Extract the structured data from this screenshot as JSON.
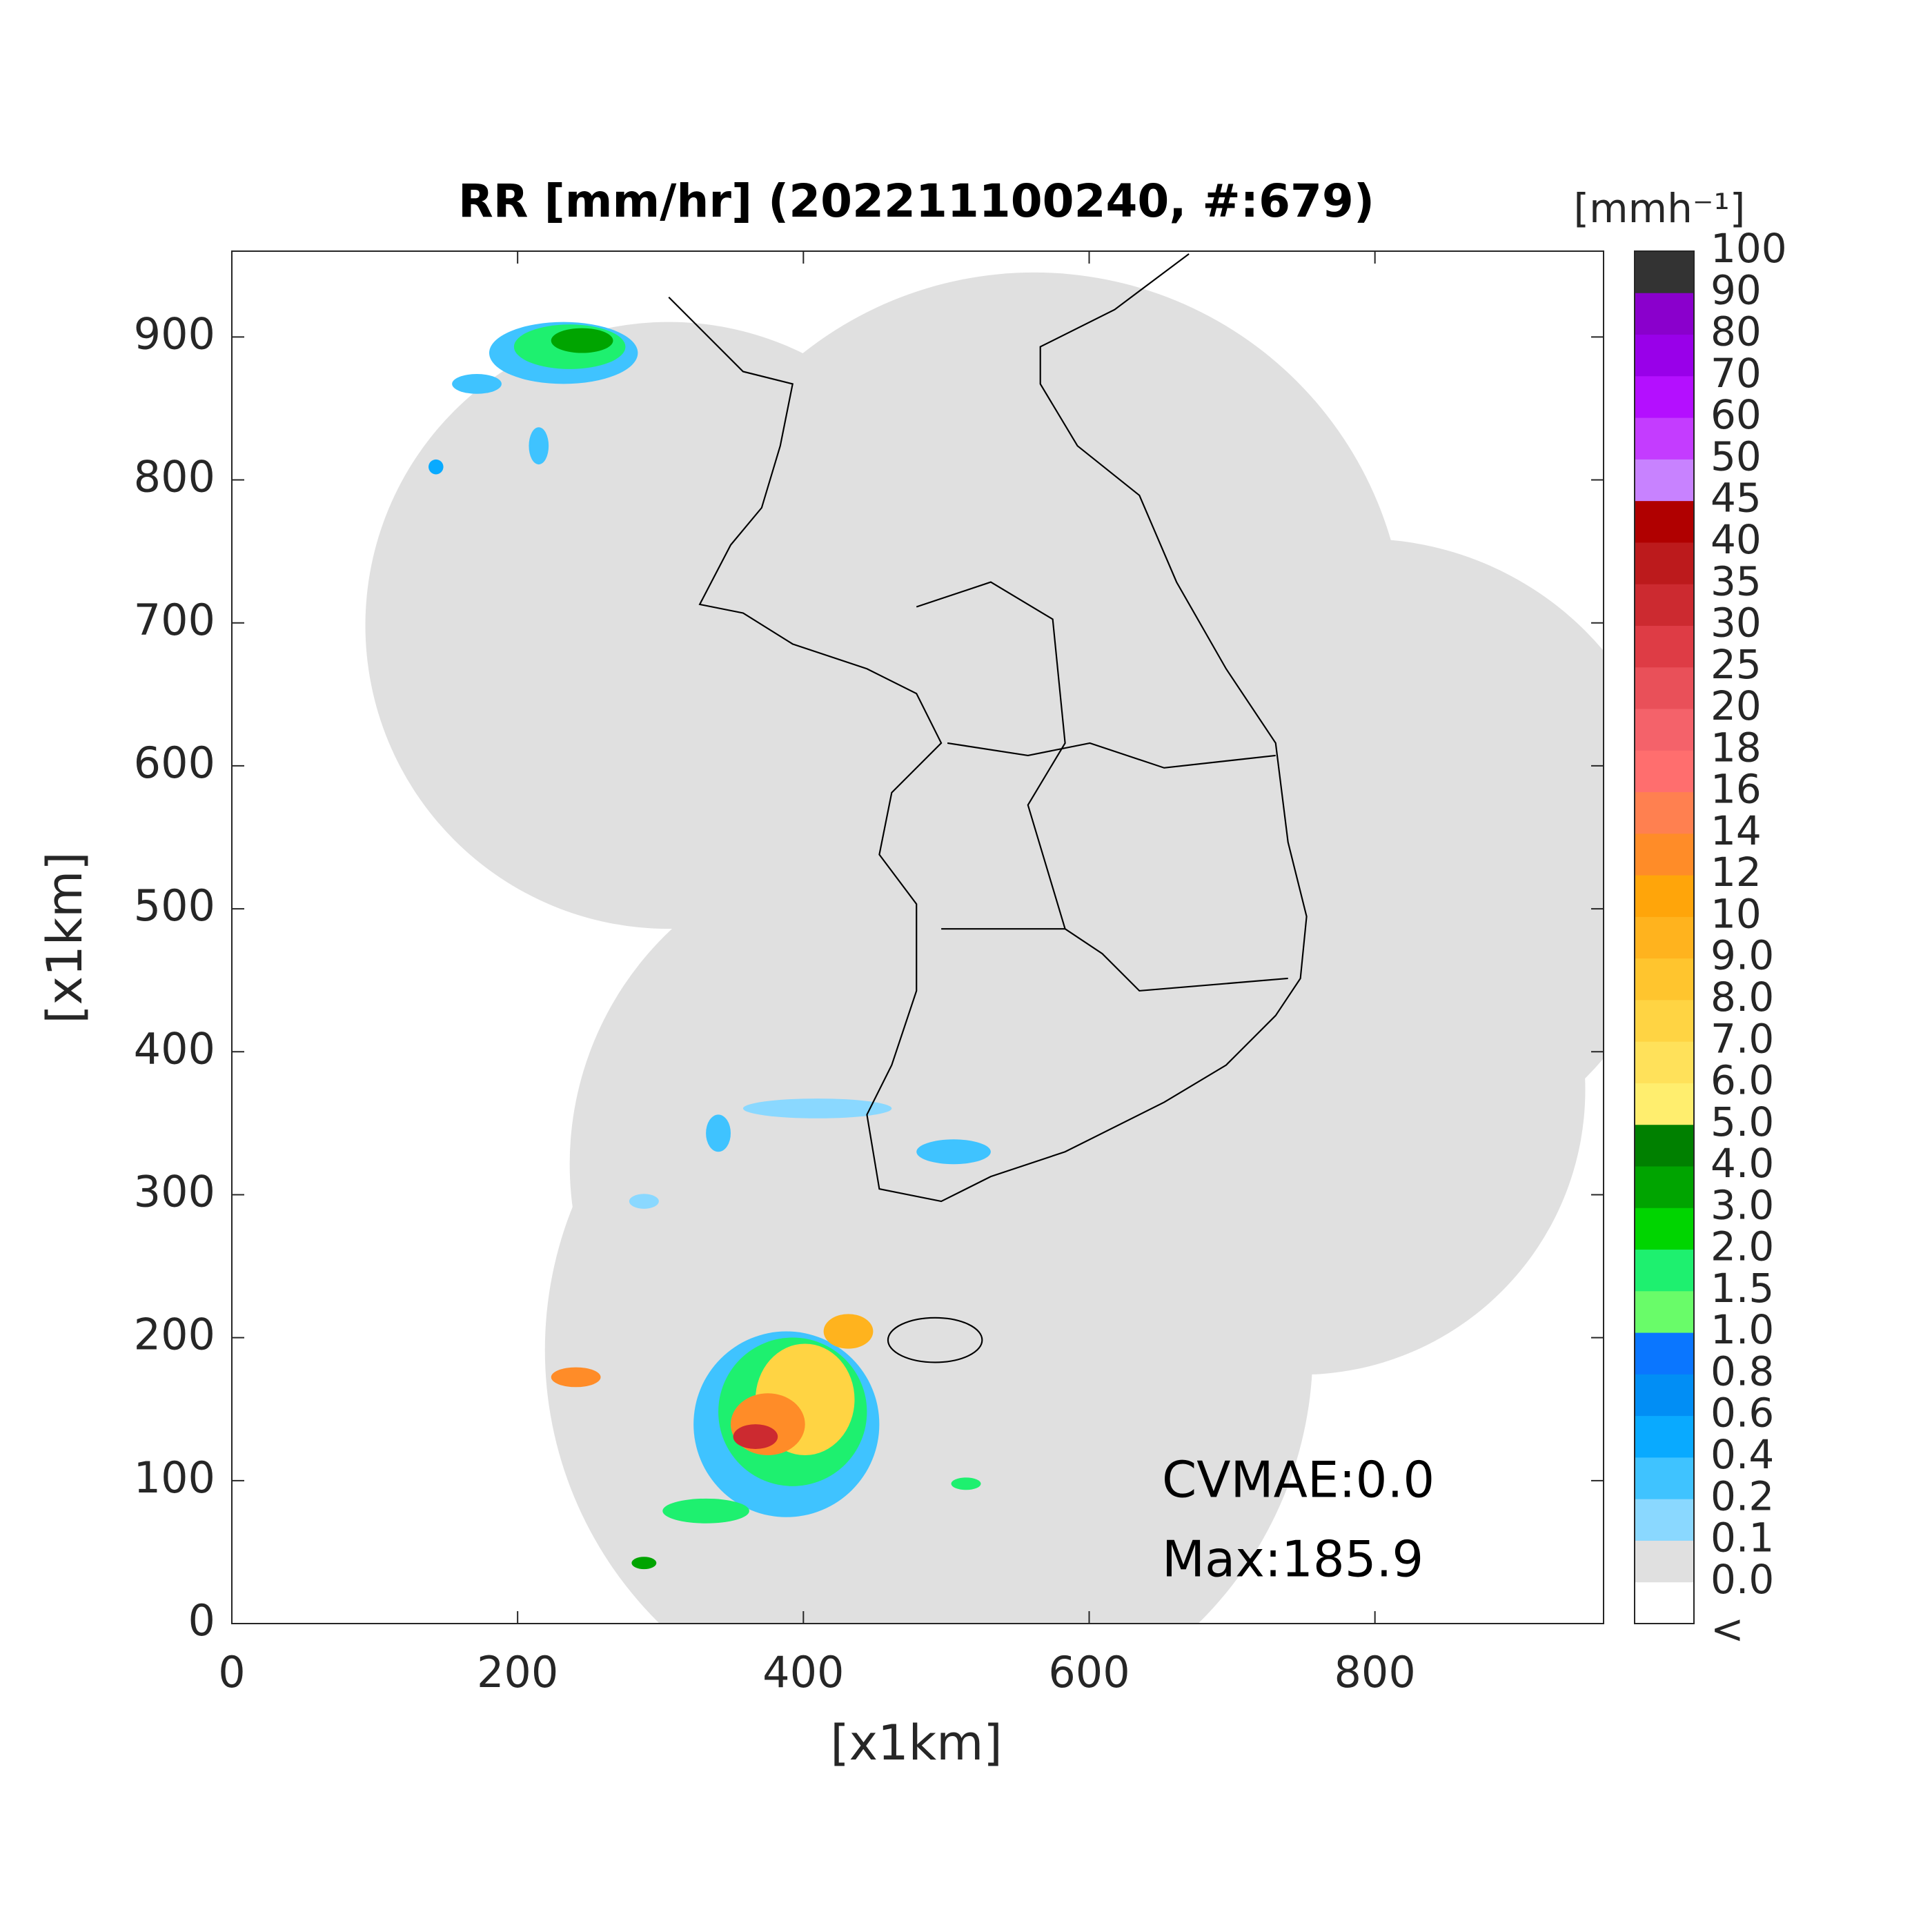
{
  "chart_data": {
    "type": "map",
    "title": "RR [mm/hr] (202211100240, #:679)",
    "x_label": "[x1km]",
    "y_label": "[x1km]",
    "xlim": [
      0,
      960
    ],
    "ylim": [
      0,
      960
    ],
    "xticks": [
      0,
      200,
      400,
      600,
      800
    ],
    "yticks": [
      0,
      100,
      200,
      300,
      400,
      500,
      600,
      700,
      800,
      900
    ],
    "colorbar": {
      "title": "[mmh⁻¹]",
      "levels": [
        "<",
        "0.0",
        "0.1",
        "0.2",
        "0.4",
        "0.6",
        "0.8",
        "1.0",
        "1.5",
        "2.0",
        "3.0",
        "4.0",
        "5.0",
        "6.0",
        "7.0",
        "8.0",
        "9.0",
        "10",
        "12",
        "14",
        "16",
        "18",
        "20",
        "25",
        "30",
        "35",
        "40",
        "45",
        "50",
        "60",
        "70",
        "80",
        "90",
        "100"
      ],
      "colors": [
        "#ffffff",
        "#e0e0e0",
        "#8ad8ff",
        "#3fc3ff",
        "#09aaff",
        "#018ef5",
        "#0a76ff",
        "#69fc69",
        "#1ef06f",
        "#00d500",
        "#00a400",
        "#008000",
        "#ffee6e",
        "#ffe15a",
        "#ffd443",
        "#ffc52e",
        "#ffb31e",
        "#ffa50a",
        "#ff8c28",
        "#ff8050",
        "#ff6e6e",
        "#f4626a",
        "#e95059",
        "#de3c45",
        "#cc2a30",
        "#bc1a1c",
        "#b00000",
        "#c882ff",
        "#c43cff",
        "#b40fff",
        "#9900e9",
        "#8a00cc",
        "#333333"
      ]
    },
    "annotations": [
      "CVMAE:0.0",
      "Max:185.9"
    ]
  }
}
